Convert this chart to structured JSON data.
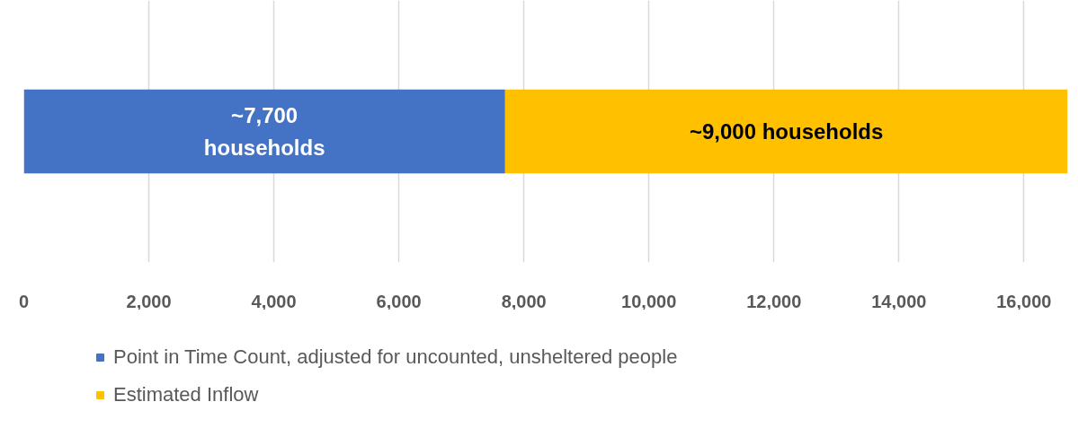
{
  "chart_data": {
    "type": "bar",
    "orientation": "horizontal",
    "stacked": true,
    "categories": [
      null
    ],
    "series": [
      {
        "name": "Point in Time Count, adjusted for uncounted, unsheltered people",
        "color": "#4472c4",
        "values": [
          7700
        ],
        "value_labels": [
          "~7,700\nhouseholds"
        ]
      },
      {
        "name": "Estimated Inflow",
        "color": "#ffc000",
        "values": [
          9000
        ],
        "value_labels": [
          "~9,000 households"
        ]
      }
    ],
    "xlim": [
      0,
      16700
    ],
    "xticks": [
      0,
      {
        "value": 2000,
        "label": "2,000"
      },
      {
        "value": 4000,
        "label": "4,000"
      },
      {
        "value": 6000,
        "label": "6,000"
      },
      {
        "value": 8000,
        "label": "8,000"
      },
      {
        "value": 10000,
        "label": "10,000"
      },
      {
        "value": 12000,
        "label": "12,000"
      },
      {
        "value": 14000,
        "label": "14,000"
      },
      {
        "value": 16000,
        "label": "16,000"
      }
    ],
    "grid": "x",
    "legend": "bottom"
  }
}
